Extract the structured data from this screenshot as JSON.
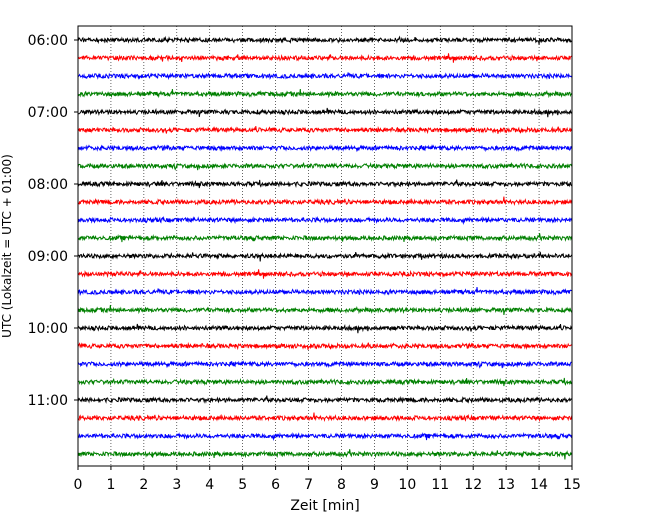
{
  "chart_data": {
    "type": "line",
    "subtype": "helicorder-seismogram",
    "xlabel": "Zeit  [min]",
    "ylabel": "UTC (Lokalzeit = UTC + 01:00)",
    "xlim": [
      0,
      15
    ],
    "x_ticks": [
      0,
      1,
      2,
      3,
      4,
      5,
      6,
      7,
      8,
      9,
      10,
      11,
      12,
      13,
      14,
      15
    ],
    "y_ticks": [
      "06:00",
      "07:00",
      "08:00",
      "09:00",
      "10:00",
      "11:00"
    ],
    "trace_start_times": [
      "06:00",
      "06:15",
      "06:30",
      "06:45",
      "07:00",
      "07:15",
      "07:30",
      "07:45",
      "08:00",
      "08:15",
      "08:30",
      "08:45",
      "09:00",
      "09:15",
      "09:30",
      "09:45",
      "10:00",
      "10:15",
      "10:30",
      "10:45",
      "11:00",
      "11:15",
      "11:30",
      "11:45"
    ],
    "trace_colors": [
      "#000000",
      "#ff0000",
      "#0000ff",
      "#008000"
    ],
    "grid": "vertical dotted lines at each minute",
    "legend": "none"
  }
}
